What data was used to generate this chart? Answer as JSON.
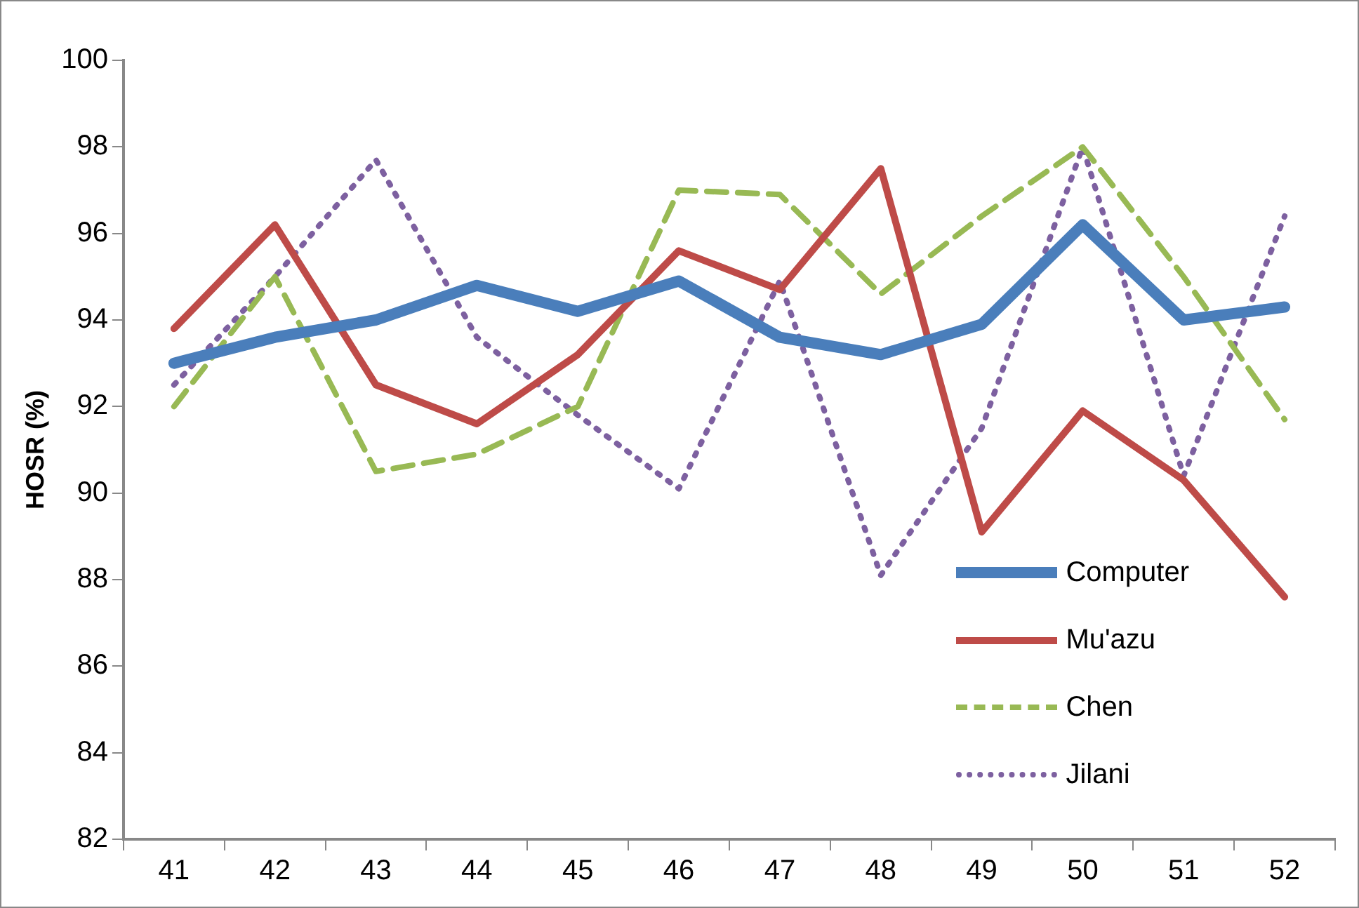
{
  "chart_data": {
    "type": "line",
    "ylabel": "HOSR (%)",
    "categories": [
      "41",
      "42",
      "43",
      "44",
      "45",
      "46",
      "47",
      "48",
      "49",
      "50",
      "51",
      "52"
    ],
    "ylim": [
      82,
      100
    ],
    "yticks": [
      82,
      84,
      86,
      88,
      90,
      92,
      94,
      96,
      98,
      100
    ],
    "grid": false,
    "legend": "bottom right",
    "marker": "none",
    "series": [
      {
        "name": "Computer",
        "color": "#4a7ebb",
        "line_style": "solid",
        "values": [
          93.0,
          93.6,
          94.0,
          94.8,
          94.2,
          94.9,
          93.6,
          93.2,
          93.9,
          96.2,
          94.0,
          94.3
        ]
      },
      {
        "name": "Mu'azu",
        "color": "#be4b48",
        "line_style": "solid",
        "values": [
          93.8,
          96.2,
          92.5,
          91.6,
          93.2,
          95.6,
          94.7,
          97.5,
          89.1,
          91.9,
          90.3,
          87.6
        ]
      },
      {
        "name": "Chen",
        "color": "#98b954",
        "line_style": "dashed",
        "values": [
          92.0,
          95.0,
          90.5,
          90.9,
          92.0,
          97.0,
          96.9,
          94.6,
          96.4,
          98.0,
          95.0,
          91.7
        ]
      },
      {
        "name": "Jilani",
        "color": "#7d60a0",
        "line_style": "dotted",
        "values": [
          92.5,
          95.0,
          97.7,
          93.6,
          91.8,
          90.1,
          94.9,
          88.1,
          91.5,
          98.0,
          90.4,
          96.4
        ]
      }
    ]
  }
}
